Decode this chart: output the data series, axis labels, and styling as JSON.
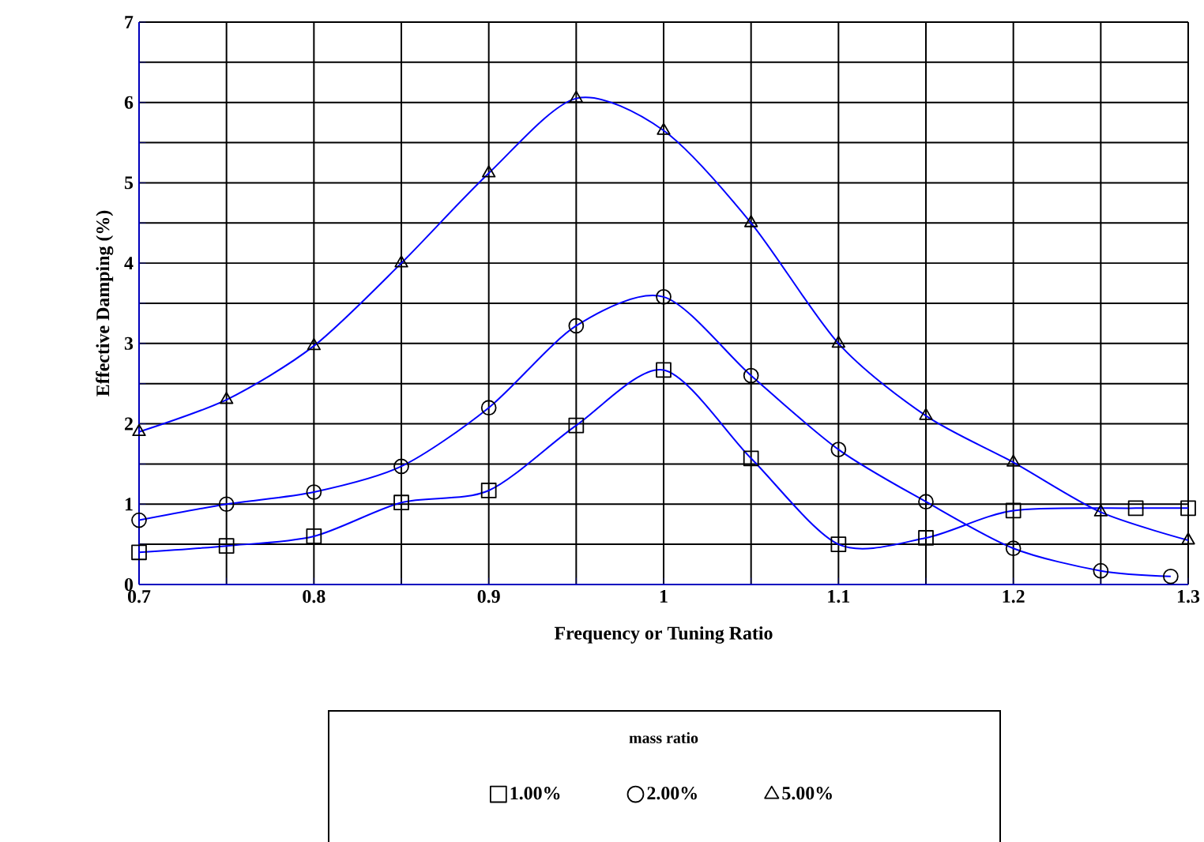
{
  "chart_data": {
    "type": "line",
    "xlabel": "Frequency or Tuning Ratio",
    "ylabel": "Effective Damping (%)",
    "legend_title": "mass ratio",
    "legend": "bottom",
    "grid": true,
    "line_style": "solid",
    "xlim": [
      0.7,
      1.3
    ],
    "ylim": [
      0,
      7
    ],
    "xticks": [
      0.7,
      {
        "value": 0.75,
        "label": null
      },
      0.8,
      {
        "value": 0.85,
        "label": null
      },
      0.9,
      {
        "value": 0.95,
        "label": null
      },
      1,
      {
        "value": 1.05,
        "label": null
      },
      1.1,
      {
        "value": 1.15,
        "label": null
      },
      1.2,
      {
        "value": 1.25,
        "label": null
      },
      1.3
    ],
    "yticks": [
      0,
      {
        "value": 0.5,
        "label": null
      },
      1,
      {
        "value": 1.5,
        "label": null
      },
      2,
      {
        "value": 2.5,
        "label": null
      },
      3,
      {
        "value": 3.5,
        "label": null
      },
      4,
      {
        "value": 4.5,
        "label": null
      },
      5,
      {
        "value": 5.5,
        "label": null
      },
      6,
      {
        "value": 6.5,
        "label": null
      },
      7
    ],
    "series": [
      {
        "name": "1.00%",
        "color": "#0000ff",
        "marker": "square",
        "x": [
          0.7,
          0.75,
          0.8,
          0.85,
          0.9,
          0.95,
          1.0,
          1.05,
          1.1,
          1.15,
          1.2,
          1.27,
          1.3
        ],
        "values": [
          0.4,
          0.48,
          0.6,
          1.02,
          1.17,
          1.98,
          2.67,
          1.57,
          0.5,
          0.58,
          0.92,
          0.95,
          0.95
        ]
      },
      {
        "name": "2.00%",
        "color": "#0000ff",
        "marker": "circle",
        "x": [
          0.7,
          0.75,
          0.8,
          0.85,
          0.9,
          0.95,
          1.0,
          1.05,
          1.1,
          1.15,
          1.2,
          1.25,
          1.29
        ],
        "values": [
          0.8,
          1.0,
          1.15,
          1.47,
          2.2,
          3.22,
          3.58,
          2.6,
          1.68,
          1.03,
          0.45,
          0.17,
          0.1
        ]
      },
      {
        "name": "5.00%",
        "color": "#0000ff",
        "marker": "triangle",
        "x": [
          0.7,
          0.75,
          0.8,
          0.85,
          0.9,
          0.95,
          1.0,
          1.05,
          1.1,
          1.15,
          1.2,
          1.25,
          1.3
        ],
        "values": [
          1.9,
          2.3,
          2.97,
          4.0,
          5.12,
          6.05,
          5.65,
          4.5,
          3.0,
          2.1,
          1.52,
          0.9,
          0.55
        ]
      }
    ]
  }
}
